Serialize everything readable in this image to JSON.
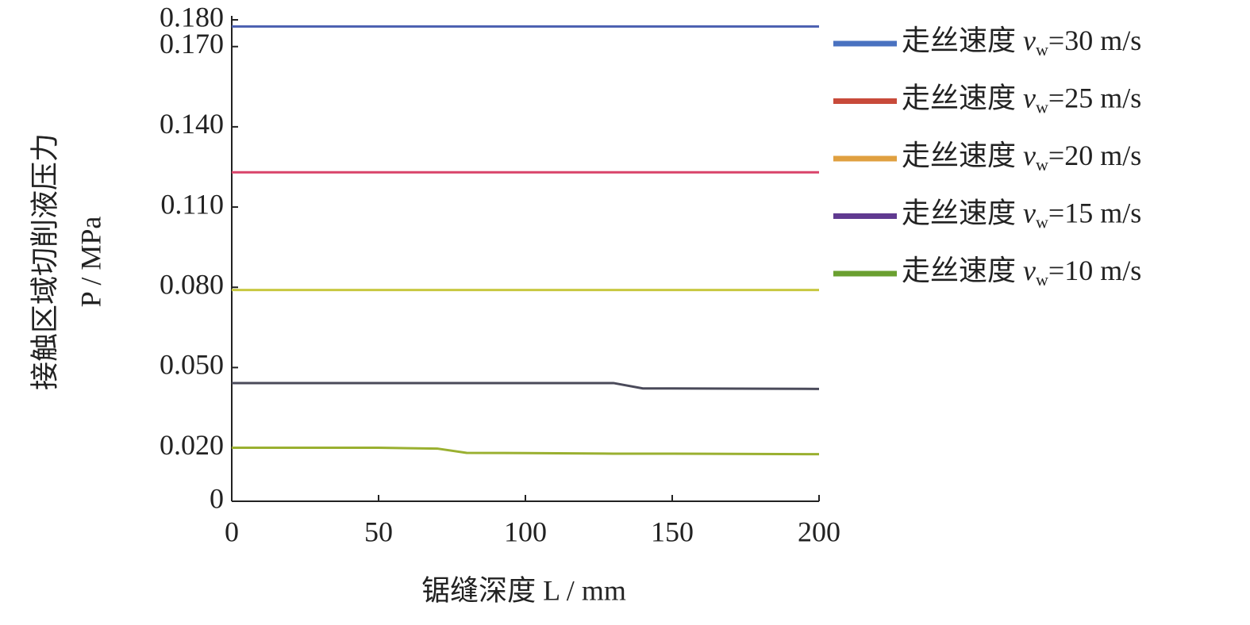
{
  "chart_data": {
    "type": "line",
    "x_label": "锯缝深度 L / mm",
    "y_label": [
      "接触区域切削液压力",
      "P / MPa"
    ],
    "x": [
      0,
      50,
      70,
      80,
      100,
      130,
      140,
      150,
      200
    ],
    "series": [
      {
        "name": "走丝速度 vw=30 m/s",
        "color": "#4a5fb0",
        "values": [
          0.1775,
          0.1775,
          0.1775,
          0.1775,
          0.1775,
          0.1775,
          0.1775,
          0.1775,
          0.1775
        ]
      },
      {
        "name": "走丝速度 vw=25 m/s",
        "color": "#d9436a",
        "values": [
          0.123,
          0.123,
          0.123,
          0.123,
          0.123,
          0.123,
          0.123,
          0.123,
          0.123
        ]
      },
      {
        "name": "走丝速度 vw=20 m/s",
        "color": "#c8c840",
        "values": [
          0.079,
          0.079,
          0.079,
          0.079,
          0.079,
          0.079,
          0.079,
          0.079,
          0.079
        ]
      },
      {
        "name": "走丝速度 vw=15 m/s",
        "color": "#4a4a5a",
        "values": [
          0.0442,
          0.0442,
          0.0442,
          0.0442,
          0.0442,
          0.0442,
          0.0422,
          0.0422,
          0.042
        ]
      },
      {
        "name": "走丝速度 vw=10 m/s",
        "color": "#9ab030",
        "values": [
          0.02,
          0.02,
          0.0197,
          0.0181,
          0.018,
          0.0178,
          0.0178,
          0.0178,
          0.0176
        ]
      }
    ],
    "legend_swatch_colors": [
      "#4a72c0",
      "#c84a3a",
      "#e0a040",
      "#603a90",
      "#6aa030"
    ],
    "xlim": [
      0,
      200
    ],
    "xticks": [
      0,
      50,
      100,
      150,
      200
    ],
    "ylim": [
      0,
      0.18
    ],
    "yticks": [
      0,
      {
        "value": 0.02,
        "label": "0.020"
      },
      {
        "value": 0.05,
        "label": "0.050"
      },
      {
        "value": 0.08,
        "label": "0.080"
      },
      {
        "value": 0.11,
        "label": "0.110"
      },
      {
        "value": 0.14,
        "label": "0.140"
      },
      {
        "value": 0.17,
        "label": "0.170"
      },
      {
        "value": 0.18,
        "label": "0.180"
      }
    ],
    "legend": "right"
  }
}
